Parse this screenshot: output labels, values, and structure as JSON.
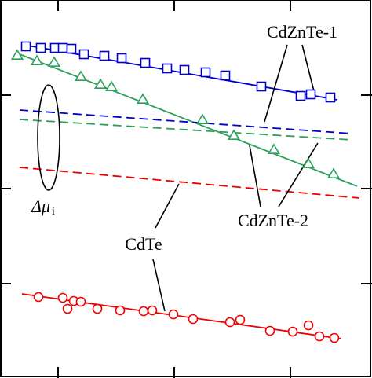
{
  "chart_data": {
    "type": "scatter",
    "title": "",
    "xlabel": "",
    "ylabel": "",
    "xlim": [
      0,
      474
    ],
    "ylim": [
      0,
      481
    ],
    "grid": false,
    "legend": "none",
    "x_ticks": [
      74,
      222,
      370
    ],
    "y_ticks": [
      121,
      240,
      361
    ],
    "series": [
      {
        "key": "cdznte1_meas",
        "marker": "square",
        "color": "#0000cc",
        "points": [
          [
            33,
            59
          ],
          [
            52,
            61
          ],
          [
            70,
            61
          ],
          [
            80,
            61
          ],
          [
            91,
            62
          ],
          [
            107,
            69
          ],
          [
            133,
            71
          ],
          [
            155,
            74
          ],
          [
            185,
            80
          ],
          [
            213,
            87
          ],
          [
            235,
            89
          ],
          [
            262,
            92
          ],
          [
            287,
            96
          ],
          [
            333,
            110
          ],
          [
            383,
            122
          ],
          [
            396,
            120
          ],
          [
            421,
            124
          ]
        ]
      },
      {
        "key": "cdznte2_meas",
        "marker": "triangle",
        "color": "#2ca05a",
        "points": [
          [
            22,
            71
          ],
          [
            47,
            78
          ],
          [
            69,
            80
          ],
          [
            103,
            98
          ],
          [
            128,
            108
          ],
          [
            142,
            111
          ],
          [
            182,
            127
          ],
          [
            258,
            153
          ],
          [
            298,
            173
          ],
          [
            349,
            191
          ],
          [
            393,
            209
          ],
          [
            425,
            222
          ]
        ]
      },
      {
        "key": "cdte_meas",
        "marker": "circle",
        "color": "#ee0000",
        "points": [
          [
            49,
            378
          ],
          [
            80,
            379
          ],
          [
            94,
            383
          ],
          [
            103,
            384
          ],
          [
            86,
            393
          ],
          [
            124,
            393
          ],
          [
            153,
            395
          ],
          [
            183,
            396
          ],
          [
            194,
            395
          ],
          [
            221,
            400
          ],
          [
            246,
            406
          ],
          [
            293,
            410
          ],
          [
            306,
            407
          ],
          [
            344,
            421
          ],
          [
            373,
            422
          ],
          [
            393,
            414
          ],
          [
            407,
            428
          ],
          [
            426,
            430
          ]
        ]
      }
    ],
    "fits": [
      {
        "key": "cdznte1_fit",
        "color": "#0000cc",
        "dash": false,
        "points": [
          [
            30,
            57
          ],
          [
            430,
            127
          ]
        ]
      },
      {
        "key": "cdznte2_fit",
        "color": "#2ca05a",
        "dash": false,
        "points": [
          [
            20,
            67
          ],
          [
            455,
            237
          ]
        ]
      },
      {
        "key": "cdte_fit",
        "color": "#ee0000",
        "dash": false,
        "points": [
          [
            28,
            374
          ],
          [
            434,
            431
          ]
        ]
      },
      {
        "key": "cdznte1_theory",
        "color": "#0000cc",
        "dash": true,
        "points": [
          [
            25,
            140
          ],
          [
            448,
            170
          ]
        ]
      },
      {
        "key": "cdznte2_theory",
        "color": "#2ca05a",
        "dash": true,
        "points": [
          [
            25,
            152
          ],
          [
            448,
            178
          ]
        ]
      },
      {
        "key": "cdte_theory",
        "color": "#ee0000",
        "dash": true,
        "points": [
          [
            25,
            213
          ],
          [
            458,
            252
          ]
        ]
      }
    ],
    "annotations": [
      {
        "key": "cdznte1",
        "text": "CdZnTe-1",
        "x": 385,
        "y": 48,
        "leaders": [
          [
            [
              366,
              57
            ],
            [
              337,
              155
            ]
          ],
          [
            [
              385,
              57
            ],
            [
              400,
              116
            ]
          ]
        ]
      },
      {
        "key": "cdznte2",
        "text": "CdZnTe-2",
        "x": 348,
        "y": 288,
        "leaders": [
          [
            [
              332,
              263
            ],
            [
              318,
              185
            ]
          ],
          [
            [
              355,
              263
            ],
            [
              405,
              182
            ]
          ]
        ]
      },
      {
        "key": "cdte",
        "text": "CdTe",
        "x": 183,
        "y": 318,
        "leaders": [
          [
            [
              198,
              290
            ],
            [
              228,
              234
            ]
          ],
          [
            [
              195,
              330
            ],
            [
              210,
              396
            ]
          ]
        ]
      },
      {
        "key": "delta_mu",
        "text": "Δμ",
        "sub": "i",
        "x": 56,
        "y": 270
      }
    ]
  }
}
